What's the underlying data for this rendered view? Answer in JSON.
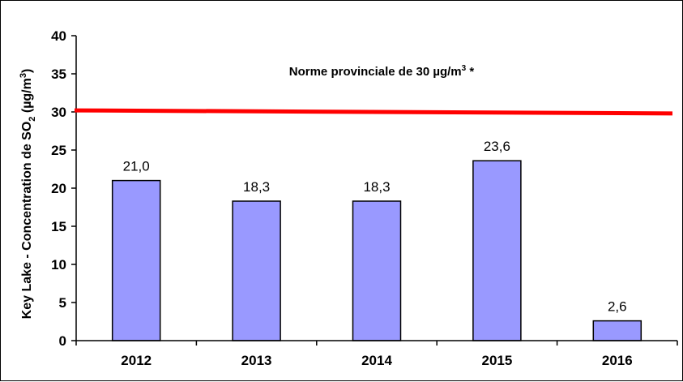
{
  "chart_data": {
    "type": "bar",
    "title": "",
    "categories": [
      "2012",
      "2013",
      "2014",
      "2015",
      "2016"
    ],
    "values": [
      21.0,
      18.3,
      18.3,
      23.6,
      2.6
    ],
    "value_labels": [
      "21,0",
      "18,3",
      "18,3",
      "23,6",
      "2,6"
    ],
    "xlabel": "",
    "ylabel": {
      "prefix": "Key Lake - Concentration de SO",
      "subscript": "2",
      "middle": " (µg/m",
      "superscript": "3",
      "suffix": ")"
    },
    "ylim": [
      0,
      40
    ],
    "yticks": [
      0,
      5,
      10,
      15,
      20,
      25,
      30,
      35,
      40
    ],
    "grid": false,
    "legend": "none",
    "bar_color": "#9999FF",
    "bar_edge_color": "#000000",
    "reference_line": {
      "value_start": 30.2,
      "value_end": 29.8,
      "color": "#FF0000",
      "annotation": {
        "text": "Norme provinciale de 30 µg/m",
        "superscript": "3",
        "suffix": " *"
      }
    }
  }
}
